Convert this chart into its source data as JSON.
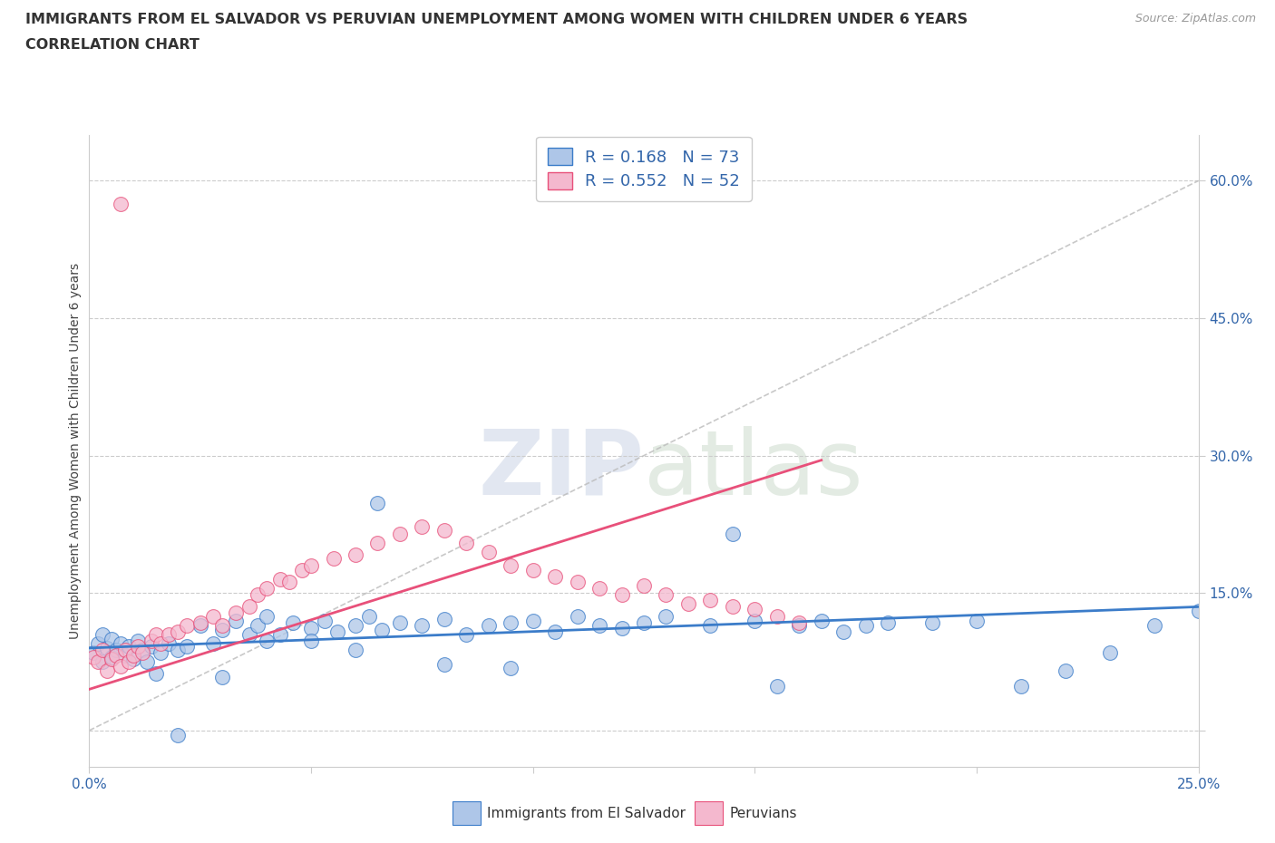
{
  "title": "IMMIGRANTS FROM EL SALVADOR VS PERUVIAN UNEMPLOYMENT AMONG WOMEN WITH CHILDREN UNDER 6 YEARS",
  "subtitle": "CORRELATION CHART",
  "source": "Source: ZipAtlas.com",
  "ylabel": "Unemployment Among Women with Children Under 6 years",
  "xlabel_blue": "Immigrants from El Salvador",
  "xlabel_pink": "Peruvians",
  "xlim": [
    0.0,
    0.25
  ],
  "ylim": [
    -0.04,
    0.65
  ],
  "R_blue": 0.168,
  "N_blue": 73,
  "R_pink": 0.552,
  "N_pink": 52,
  "blue_color": "#aec6e8",
  "pink_color": "#f4b8ce",
  "blue_line_color": "#3b7cc9",
  "pink_line_color": "#e8507a",
  "diag_color": "#bbbbbb",
  "grid_color": "#cccccc",
  "blue_x": [
    0.001,
    0.002,
    0.003,
    0.003,
    0.004,
    0.005,
    0.005,
    0.006,
    0.007,
    0.008,
    0.009,
    0.01,
    0.011,
    0.012,
    0.013,
    0.014,
    0.016,
    0.018,
    0.02,
    0.022,
    0.025,
    0.028,
    0.03,
    0.033,
    0.036,
    0.038,
    0.04,
    0.043,
    0.046,
    0.05,
    0.053,
    0.056,
    0.06,
    0.063,
    0.066,
    0.07,
    0.075,
    0.08,
    0.085,
    0.09,
    0.095,
    0.1,
    0.105,
    0.11,
    0.115,
    0.12,
    0.125,
    0.13,
    0.14,
    0.15,
    0.155,
    0.16,
    0.165,
    0.17,
    0.175,
    0.18,
    0.19,
    0.2,
    0.21,
    0.22,
    0.23,
    0.24,
    0.25,
    0.095,
    0.145,
    0.065,
    0.04,
    0.05,
    0.06,
    0.08,
    0.03,
    0.02,
    0.015
  ],
  "blue_y": [
    0.085,
    0.095,
    0.075,
    0.105,
    0.09,
    0.08,
    0.1,
    0.088,
    0.095,
    0.082,
    0.092,
    0.078,
    0.098,
    0.088,
    0.075,
    0.092,
    0.085,
    0.095,
    0.088,
    0.092,
    0.115,
    0.095,
    0.11,
    0.12,
    0.105,
    0.115,
    0.125,
    0.105,
    0.118,
    0.112,
    0.12,
    0.108,
    0.115,
    0.125,
    0.11,
    0.118,
    0.115,
    0.122,
    0.105,
    0.115,
    0.118,
    0.12,
    0.108,
    0.125,
    0.115,
    0.112,
    0.118,
    0.125,
    0.115,
    0.12,
    0.048,
    0.115,
    0.12,
    0.108,
    0.115,
    0.118,
    0.118,
    0.12,
    0.048,
    0.065,
    0.085,
    0.115,
    0.13,
    0.068,
    0.215,
    0.248,
    0.098,
    0.098,
    0.088,
    0.072,
    0.058,
    -0.005,
    0.062
  ],
  "pink_x": [
    0.001,
    0.002,
    0.003,
    0.004,
    0.005,
    0.006,
    0.007,
    0.008,
    0.009,
    0.01,
    0.011,
    0.012,
    0.014,
    0.015,
    0.016,
    0.018,
    0.02,
    0.022,
    0.025,
    0.028,
    0.03,
    0.033,
    0.036,
    0.038,
    0.04,
    0.043,
    0.045,
    0.048,
    0.05,
    0.055,
    0.06,
    0.065,
    0.07,
    0.075,
    0.08,
    0.085,
    0.09,
    0.095,
    0.1,
    0.105,
    0.11,
    0.115,
    0.12,
    0.125,
    0.13,
    0.135,
    0.14,
    0.145,
    0.15,
    0.155,
    0.16,
    0.007
  ],
  "pink_y": [
    0.08,
    0.075,
    0.088,
    0.065,
    0.078,
    0.082,
    0.07,
    0.088,
    0.075,
    0.082,
    0.092,
    0.085,
    0.098,
    0.105,
    0.095,
    0.105,
    0.108,
    0.115,
    0.118,
    0.125,
    0.115,
    0.128,
    0.135,
    0.148,
    0.155,
    0.165,
    0.162,
    0.175,
    0.18,
    0.188,
    0.192,
    0.205,
    0.215,
    0.222,
    0.218,
    0.205,
    0.195,
    0.18,
    0.175,
    0.168,
    0.162,
    0.155,
    0.148,
    0.158,
    0.148,
    0.138,
    0.142,
    0.135,
    0.132,
    0.125,
    0.118,
    0.575
  ],
  "blue_line_x": [
    0.0,
    0.25
  ],
  "blue_line_y": [
    0.09,
    0.135
  ],
  "pink_line_x": [
    0.0,
    0.165
  ],
  "pink_line_y": [
    0.045,
    0.295
  ]
}
